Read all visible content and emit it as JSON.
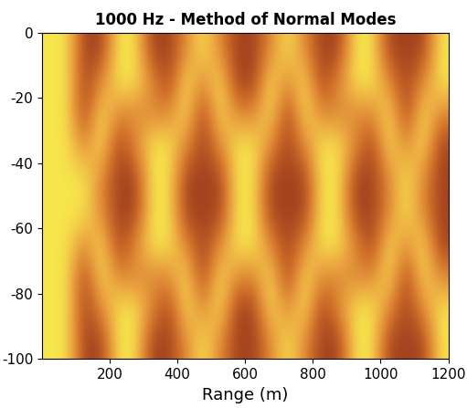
{
  "chart_data": {
    "type": "heatmap",
    "title": "1000 Hz - Method of Normal Modes",
    "x_label": "Range (m)",
    "xlim": [
      0,
      1200
    ],
    "xticks": [
      200,
      400,
      600,
      800,
      1000,
      1200
    ],
    "ylim": [
      -100,
      0
    ],
    "yticks": [
      0,
      -20,
      -40,
      -60,
      -80,
      -100
    ],
    "cells": [
      [
        9,
        9,
        3,
        3,
        9,
        9,
        3,
        3,
        6,
        9,
        6,
        3,
        3,
        6,
        9,
        6,
        3,
        3,
        9,
        9,
        3,
        3,
        3,
        9
      ],
      [
        9,
        9,
        3,
        6,
        9,
        9,
        6,
        3,
        9,
        6,
        9,
        3,
        3,
        9,
        6,
        9,
        3,
        6,
        9,
        9,
        6,
        3,
        6,
        9
      ],
      [
        9,
        9,
        3,
        9,
        6,
        6,
        6,
        6,
        9,
        3,
        9,
        6,
        6,
        9,
        3,
        9,
        6,
        6,
        6,
        6,
        9,
        3,
        9,
        6
      ],
      [
        9,
        9,
        6,
        9,
        3,
        6,
        9,
        9,
        6,
        3,
        6,
        9,
        9,
        6,
        3,
        6,
        9,
        9,
        6,
        3,
        9,
        6,
        9,
        3
      ],
      [
        9,
        9,
        9,
        6,
        3,
        3,
        9,
        9,
        3,
        3,
        3,
        9,
        9,
        3,
        3,
        3,
        9,
        9,
        3,
        3,
        6,
        9,
        6,
        3
      ],
      [
        9,
        9,
        9,
        6,
        3,
        3,
        9,
        9,
        3,
        3,
        3,
        9,
        9,
        3,
        3,
        3,
        9,
        9,
        3,
        3,
        6,
        9,
        6,
        3
      ],
      [
        9,
        9,
        6,
        9,
        3,
        6,
        9,
        9,
        6,
        3,
        6,
        9,
        9,
        6,
        3,
        6,
        9,
        9,
        6,
        3,
        9,
        6,
        9,
        3
      ],
      [
        9,
        9,
        3,
        9,
        6,
        6,
        6,
        6,
        9,
        3,
        9,
        6,
        6,
        9,
        3,
        9,
        6,
        6,
        6,
        6,
        9,
        3,
        9,
        6
      ],
      [
        9,
        9,
        3,
        6,
        9,
        9,
        6,
        3,
        9,
        6,
        9,
        3,
        3,
        9,
        6,
        9,
        3,
        6,
        9,
        9,
        6,
        3,
        6,
        9
      ],
      [
        9,
        9,
        3,
        3,
        9,
        9,
        3,
        3,
        6,
        9,
        6,
        3,
        3,
        6,
        9,
        6,
        3,
        3,
        9,
        9,
        3,
        3,
        3,
        9
      ]
    ]
  }
}
